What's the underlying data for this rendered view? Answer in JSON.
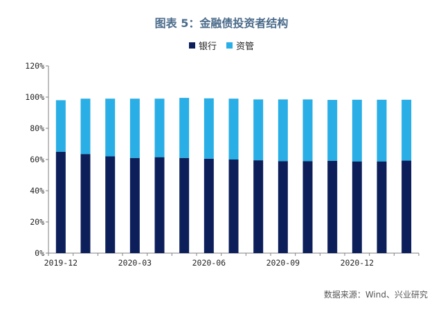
{
  "colors": {
    "bank": "#0d1f5a",
    "asset_mgmt": "#29aee6",
    "axis": "#7f7f7f"
  },
  "chart_data": {
    "type": "bar",
    "stacked": true,
    "title": "图表 5：金融债投资者结构",
    "ylim": [
      0,
      120
    ],
    "yticks": [
      "0%",
      "20%",
      "40%",
      "60%",
      "80%",
      "100%",
      "120%"
    ],
    "categories": [
      "2019-12",
      "2020-01",
      "2020-02",
      "2020-03",
      "2020-04",
      "2020-05",
      "2020-06",
      "2020-07",
      "2020-08",
      "2020-09",
      "2020-10",
      "2020-11",
      "2020-12",
      "2021-01",
      "2021-02"
    ],
    "xtick_labels": [
      "2019-12",
      "2020-03",
      "2020-06",
      "2020-09",
      "2020-12"
    ],
    "series": [
      {
        "name": "银行",
        "values": [
          65,
          63.5,
          62,
          61,
          61.5,
          61,
          60.5,
          60,
          59.5,
          59,
          59,
          59.2,
          58.8,
          58.8,
          59.3
        ]
      },
      {
        "name": "资管",
        "values": [
          33,
          35.5,
          37,
          38,
          37.5,
          38.5,
          38.7,
          39,
          39,
          39.5,
          39.5,
          39,
          39.5,
          39.5,
          39
        ]
      }
    ],
    "legend_position": "top-center",
    "source": "数据来源：Wind、兴业研究"
  }
}
